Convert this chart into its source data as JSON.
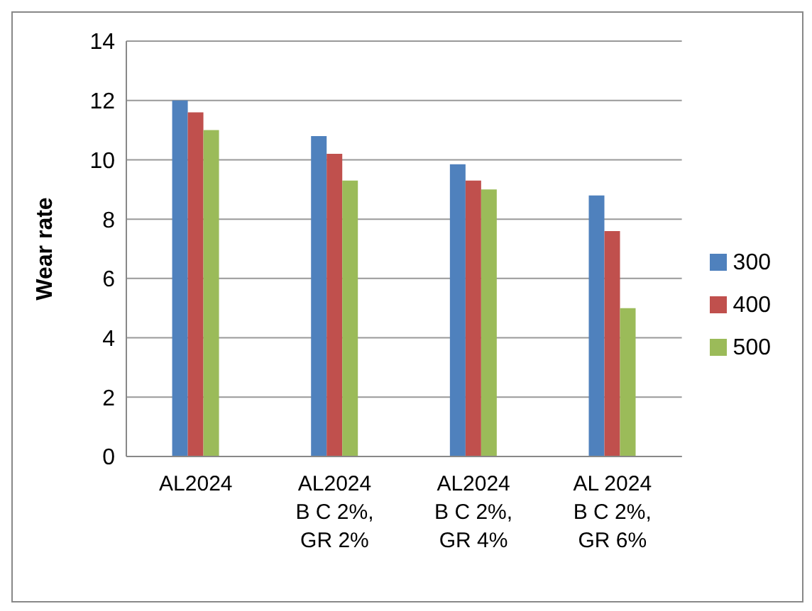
{
  "chart_data": {
    "type": "bar",
    "ylabel": "Wear rate",
    "categories": [
      "AL2024",
      "AL2024\nB C 2%,\nGR 2%",
      "AL2024\nB C 2%,\nGR 4%",
      "AL 2024\nB C 2%,\nGR 6%"
    ],
    "series": [
      {
        "name": "300",
        "color": "#4f81bd",
        "values": [
          12.0,
          10.8,
          9.85,
          8.8
        ]
      },
      {
        "name": "400",
        "color": "#c0504d",
        "values": [
          11.6,
          10.2,
          9.3,
          7.6
        ]
      },
      {
        "name": "500",
        "color": "#9bbb59",
        "values": [
          11.0,
          9.3,
          9.0,
          5.0
        ]
      }
    ],
    "ylim": [
      0,
      14
    ],
    "yticks": [
      0,
      2,
      4,
      6,
      8,
      10,
      12,
      14
    ],
    "grid": "y",
    "legend": "right"
  }
}
